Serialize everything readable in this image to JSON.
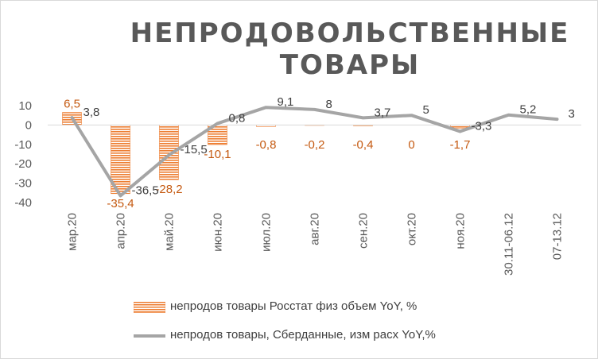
{
  "title_line1": "НЕПРОДОВОЛЬСТВЕННЫЕ",
  "title_line2": "ТОВАРЫ",
  "colors": {
    "bar": "#ed7d31",
    "bar_label": "#c55a11",
    "line": "#a5a5a5",
    "line_label": "#404040",
    "axis_text": "#595959"
  },
  "chart_data": {
    "type": "bar+line",
    "categories": [
      "мар.20",
      "апр.20",
      "май.20",
      "июн.20",
      "июл.20",
      "авг.20",
      "сен.20",
      "окт.20",
      "ноя.20",
      "30.11-06.12",
      "07-13.12"
    ],
    "series": [
      {
        "name": "непродов товары Росстат физ объем YoY, %",
        "type": "bar",
        "values": [
          6.5,
          -35.4,
          -28.2,
          -10.1,
          -0.8,
          -0.2,
          -0.4,
          0,
          -1.7,
          null,
          null
        ],
        "labels": [
          "6,5",
          "-35,4",
          "-28,2",
          "-10,1",
          "-0,8",
          "-0,2",
          "-0,4",
          "0",
          "-1,7",
          "",
          ""
        ]
      },
      {
        "name": "непродов товары, Сберданные, изм расх YoY,%",
        "type": "line",
        "values": [
          3.8,
          -36.5,
          -15.5,
          0.8,
          9.1,
          8,
          3.7,
          5,
          -3.3,
          5.2,
          3
        ],
        "labels": [
          "3,8",
          "-36,5",
          "-15,5",
          "0,8",
          "9,1",
          "8",
          "3,7",
          "5",
          "-3,3",
          "5,2",
          "3"
        ]
      }
    ],
    "y_ticks": [
      "10",
      "0",
      "-10",
      "-20",
      "-30",
      "-40"
    ],
    "ylim": [
      -40,
      10
    ],
    "grid": false,
    "legend_position": "bottom"
  }
}
